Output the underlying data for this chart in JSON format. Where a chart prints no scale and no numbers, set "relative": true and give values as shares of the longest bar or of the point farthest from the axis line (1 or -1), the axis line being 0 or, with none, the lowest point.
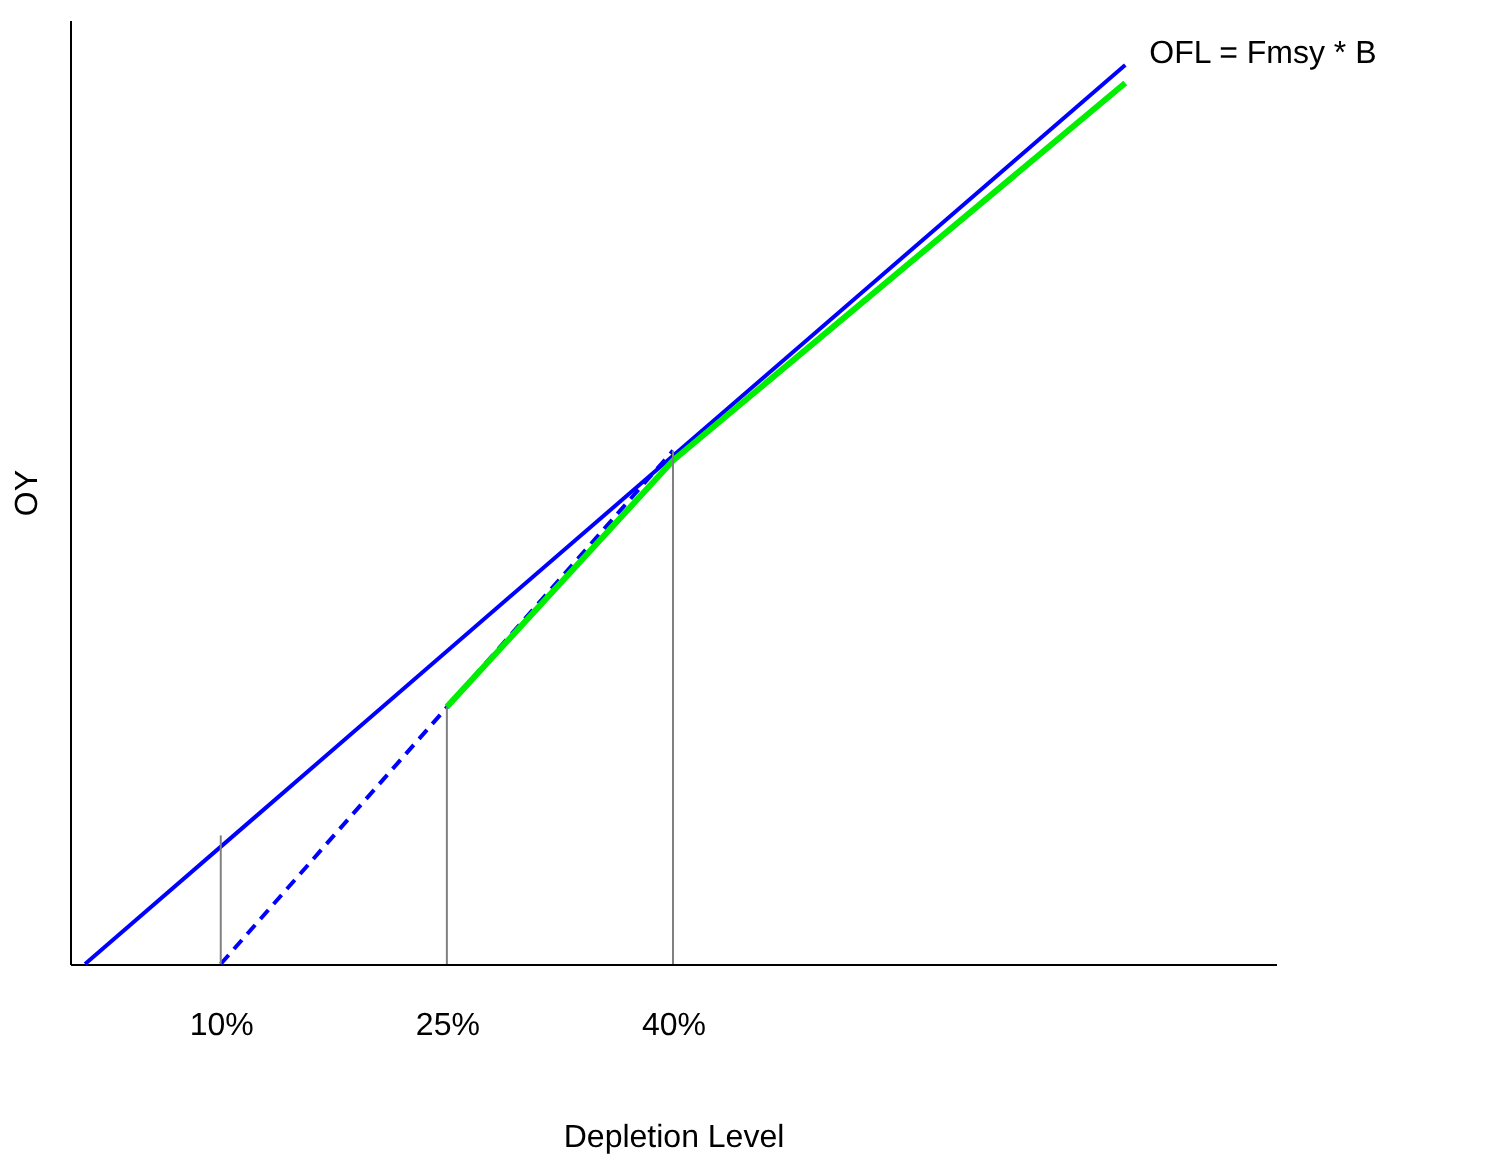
{
  "chart_data": {
    "type": "line",
    "relative": true,
    "xlabel": "Depletion Level",
    "ylabel": "OY",
    "xlim": [
      0,
      80
    ],
    "xticks": [
      {
        "value": 10,
        "label": "10%"
      },
      {
        "value": 25,
        "label": "25%"
      },
      {
        "value": 40,
        "label": "40%"
      }
    ],
    "tick_labels": "x",
    "grid": false,
    "marker": "none",
    "series": [
      {
        "name": "OFL = Fmsy * B",
        "color": "#0000ff",
        "x": [
          1,
          70
        ],
        "values": [
          0,
          1
        ],
        "line_style": "solid"
      },
      {
        "color": "#0000ff",
        "x": [
          10,
          40
        ],
        "values": [
          0,
          0.571
        ],
        "line_style": "dashed"
      },
      {
        "color": "#00ee00",
        "x": [
          25,
          40,
          70
        ],
        "values": [
          0.286,
          0.56,
          0.98
        ],
        "line_style": "solid"
      },
      {
        "color": "#808080",
        "x": [
          10,
          10
        ],
        "values": [
          0,
          0.143
        ],
        "line_style": "solid"
      },
      {
        "color": "#808080",
        "x": [
          25,
          25
        ],
        "values": [
          0,
          0.286
        ],
        "line_style": "solid"
      },
      {
        "color": "#808080",
        "x": [
          40,
          40
        ],
        "values": [
          0,
          0.571
        ],
        "line_style": "solid"
      }
    ]
  }
}
